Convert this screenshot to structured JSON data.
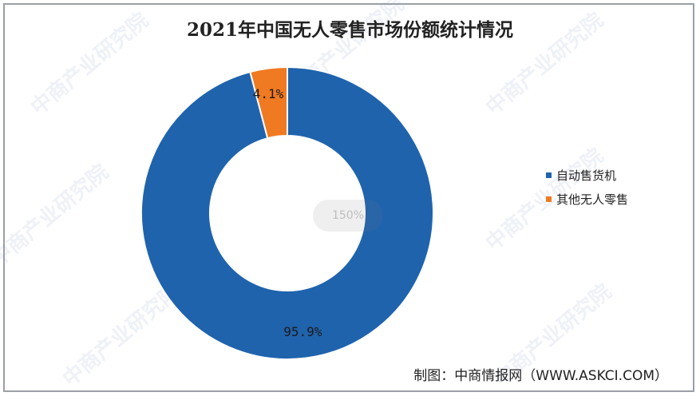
{
  "chart_data": {
    "type": "donut",
    "title": "2021年中国无人零售市场份额统计情况",
    "categories": [
      "自动售货机",
      "其他无人零售"
    ],
    "values": [
      95.9,
      4.1
    ],
    "labels": [
      "95.9%",
      "4.1%"
    ],
    "colors": [
      "#1f63ad",
      "#f07a22"
    ],
    "legend_position": "right"
  },
  "zoom_badge": "150%",
  "source": "制图：中商情报网（WWW.ASKCI.COM）",
  "watermark": "中商产业研究院"
}
